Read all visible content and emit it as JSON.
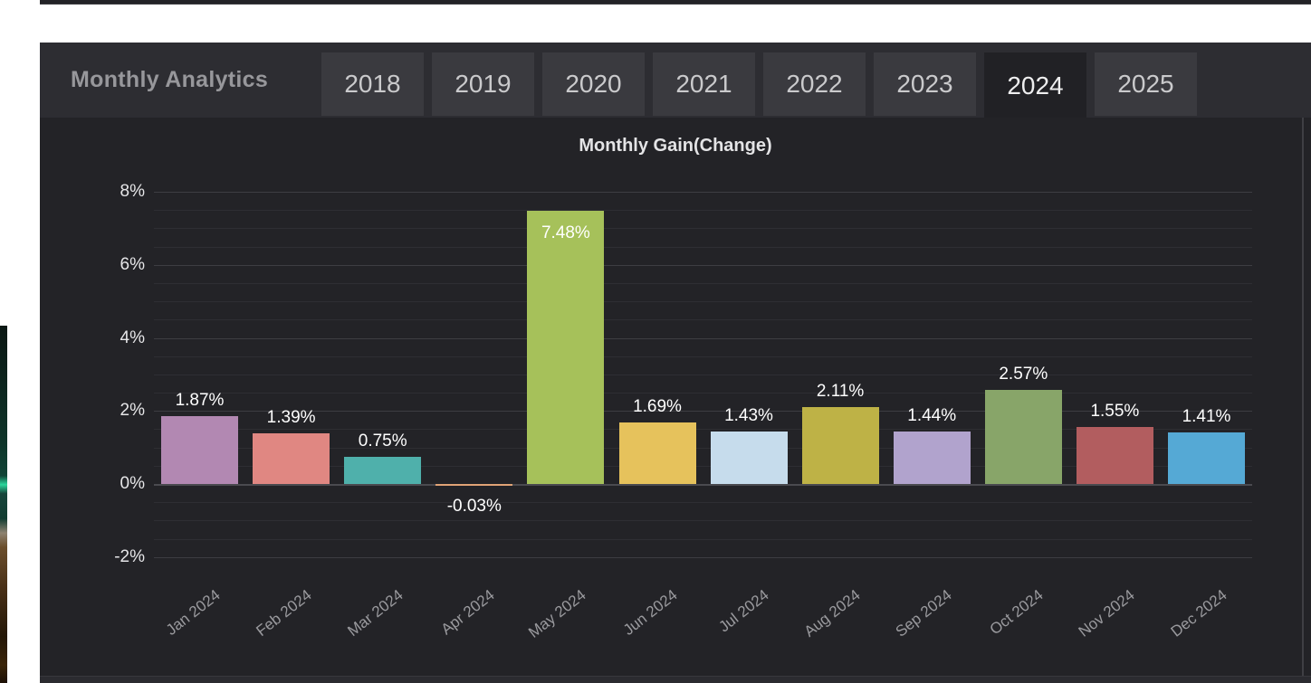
{
  "header": {
    "title": "Monthly Analytics",
    "tabs": [
      {
        "label": "2018",
        "active": false
      },
      {
        "label": "2019",
        "active": false
      },
      {
        "label": "2020",
        "active": false
      },
      {
        "label": "2021",
        "active": false
      },
      {
        "label": "2022",
        "active": false
      },
      {
        "label": "2023",
        "active": false
      },
      {
        "label": "2024",
        "active": true
      },
      {
        "label": "2025",
        "active": false
      }
    ]
  },
  "chart_data": {
    "type": "bar",
    "title": "Monthly Gain(Change)",
    "categories": [
      "Jan 2024",
      "Feb 2024",
      "Mar 2024",
      "Apr 2024",
      "May 2024",
      "Jun 2024",
      "Jul 2024",
      "Aug 2024",
      "Sep 2024",
      "Oct 2024",
      "Nov 2024",
      "Dec 2024"
    ],
    "values": [
      1.87,
      1.39,
      0.75,
      -0.03,
      7.48,
      1.69,
      1.43,
      2.11,
      1.44,
      2.57,
      1.55,
      1.41
    ],
    "value_labels": [
      "1.87%",
      "1.39%",
      "0.75%",
      "-0.03%",
      "7.48%",
      "1.69%",
      "1.43%",
      "2.11%",
      "1.44%",
      "2.57%",
      "1.55%",
      "1.41%"
    ],
    "bar_colors": [
      "#b288b2",
      "#e08782",
      "#4fb0ab",
      "#e0a376",
      "#a6c15a",
      "#e6c25c",
      "#c6dcec",
      "#beb246",
      "#b1a3cd",
      "#88a569",
      "#b25d5f",
      "#55a9d5"
    ],
    "y_ticks": [
      "8%",
      "6%",
      "4%",
      "2%",
      "0%",
      "-2%"
    ],
    "y_tick_values": [
      8,
      6,
      4,
      2,
      0,
      -2
    ],
    "ylim": [
      -2.6,
      8.6
    ],
    "grid": true,
    "legend": "none",
    "xlabel": "",
    "ylabel": ""
  },
  "colors": {
    "page_bg": "#ffffff",
    "panel_bg": "#232327",
    "header_bg": "#2d2d32",
    "tab_bg": "#3a3a3f",
    "tab_active_bg": "#212125",
    "value_label_text": "#ffffff"
  }
}
